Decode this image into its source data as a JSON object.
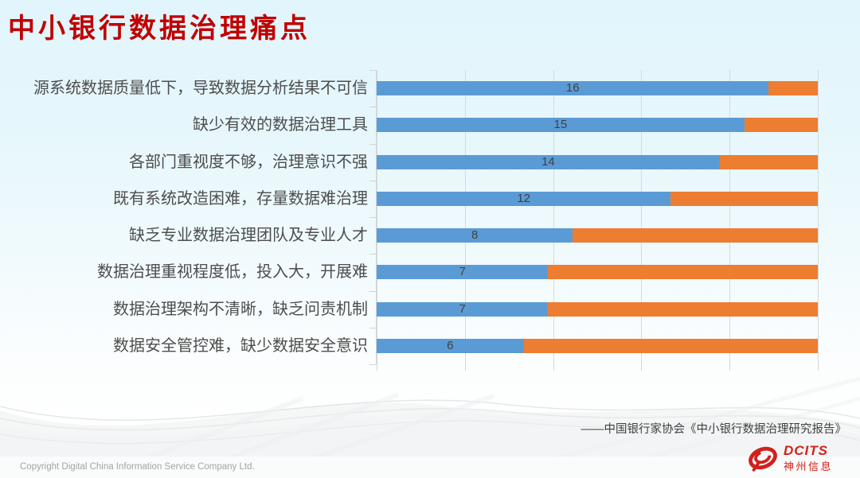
{
  "title": "中小银行数据治理痛点",
  "chart_data": {
    "type": "bar",
    "orientation": "horizontal",
    "stacked": true,
    "title": "",
    "xlabel": "",
    "ylabel": "",
    "legend": "none",
    "grid": true,
    "gridline_count": 5,
    "xlim": [
      0,
      18
    ],
    "categories": [
      "源系统数据质量低下，导致数据分析结果不可信",
      "缺少有效的数据治理工具",
      "各部门重视度不够，治理意识不强",
      "既有系统改造困难，存量数据难治理",
      "缺乏专业数据治理团队及专业人才",
      "数据治理重视程度低，投入大，开展难",
      "数据治理架构不清晰，缺乏问责机制",
      "数据安全管控难，缺少数据安全意识"
    ],
    "series": [
      {
        "color": "#5B9BD5",
        "values": [
          16,
          15,
          14,
          12,
          8,
          7,
          7,
          6
        ]
      },
      {
        "color": "#ED7D31",
        "values": [
          2,
          3,
          4,
          6,
          10,
          11,
          11,
          12
        ]
      }
    ],
    "value_labels": [
      "16",
      "15",
      "14",
      "12",
      "8",
      "7",
      "7",
      "6"
    ],
    "value_labels_on_series": 0
  },
  "citation": "——中国银行家协会《中小银行数据治理研究报告》",
  "footer": {
    "copyright": "Copyright  Digital China Information Service Company Ltd.",
    "logo_text": "DCITS",
    "logo_subtext": "神州信息"
  },
  "colors": {
    "title_red": "#C00000",
    "bar_blue": "#5B9BD5",
    "bar_orange": "#ED7D31",
    "category_text": "#4D4D4D",
    "value_text": "#404040",
    "gridline": "#D9D9D9",
    "citation_text": "#404040",
    "copyright_text": "#A3A3A3",
    "logo_red": "#D0221B",
    "background_top": "#E1F5FC"
  }
}
